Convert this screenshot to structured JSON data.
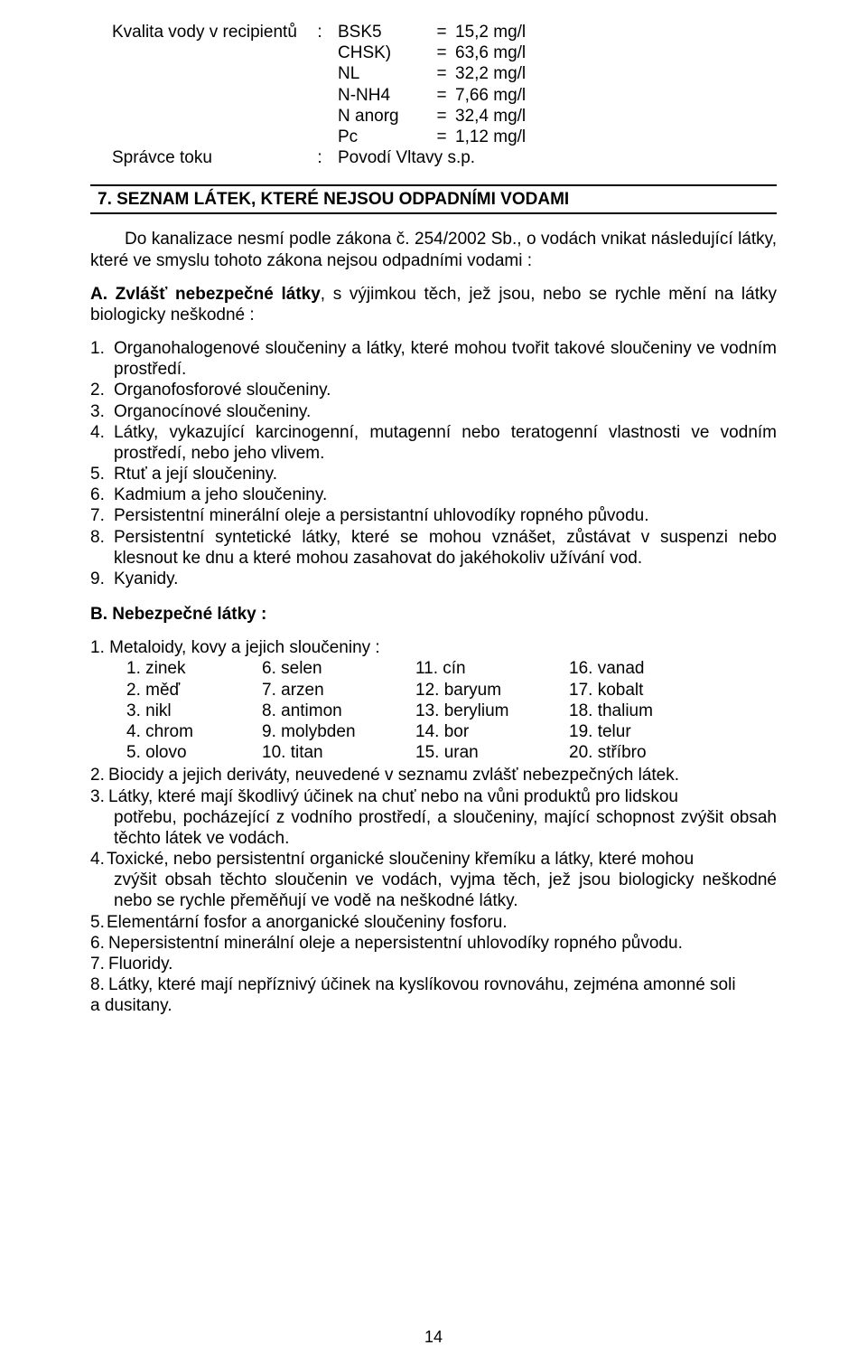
{
  "kv": {
    "label1": "Kvalita vody v recipientů",
    "colon": ":",
    "rows": [
      {
        "param": "BSK5",
        "eq": "=",
        "val": "15,2 mg/l"
      },
      {
        "param": "CHSK)",
        "eq": "=",
        "val": "63,6 mg/l"
      },
      {
        "param": "NL",
        "eq": "=",
        "val": "32,2 mg/l"
      },
      {
        "param": "N-NH4",
        "eq": "=",
        "val": "7,66 mg/l"
      },
      {
        "param": "N anorg",
        "eq": "=",
        "val": "32,4 mg/l"
      },
      {
        "param": "Pc",
        "eq": "=",
        "val": "1,12 mg/l"
      }
    ],
    "label2": "Správce toku",
    "val2": "Povodí Vltavy s.p."
  },
  "heading": "7. SEZNAM  LÁTEK,  KTERÉ  NEJSOU  ODPADNÍMI  VODAMI",
  "p1": "Do kanalizace nesmí podle zákona č. 254/2002 Sb., o vodách vnikat následující látky, které ve smyslu tohoto zákona nejsou odpadními vodami :",
  "p2a": "A. Zvlášť nebezpečné látky",
  "p2b": ", s výjimkou těch, jež jsou, nebo se rychle mění na látky biologicky neškodné :",
  "listA": [
    "Organohalogenové sloučeniny a látky, které mohou tvořit takové sloučeniny ve vodním prostředí.",
    "Organofosforové sloučeniny.",
    "Organocínové sloučeniny.",
    "Látky, vykazující karcinogenní, mutagenní nebo teratogenní vlastnosti ve vodním prostředí, nebo jeho vlivem.",
    "Rtuť a její sloučeniny.",
    "Kadmium a jeho sloučeniny.",
    "Persistentní minerální oleje a persistantní uhlovodíky ropného původu.",
    "Persistentní syntetické látky, které se mohou vznášet, zůstávat v suspenzi nebo klesnout ke dnu a které mohou zasahovat do jakéhokoliv užívání vod.",
    "Kyanidy."
  ],
  "subB": "B. Nebezpečné látky :",
  "b1": "1. Metaloidy, kovy a jejich sloučeniny :",
  "metals": [
    [
      "1. zinek",
      "6. selen",
      "11. cín",
      "16. vanad"
    ],
    [
      "2. měď",
      "7. arzen",
      "12. baryum",
      "17. kobalt"
    ],
    [
      "3. nikl",
      "8. antimon",
      "13. berylium",
      "18. thalium"
    ],
    [
      "4. chrom",
      "9. molybden",
      "14. bor",
      "19. telur"
    ],
    [
      "5. olovo",
      "10. titan",
      "15. uran",
      "20. stříbro"
    ]
  ],
  "notes": [
    {
      "n": "2.",
      "t": "Biocidy a jejich deriváty, neuvedené v seznamu zvlášť nebezpečných látek."
    },
    {
      "n": "3.",
      "t": "Látky, které mají škodlivý účinek na chuť nebo na vůni produktů pro lidskou"
    },
    {
      "cont": "potřebu, pocházející z vodního prostředí, a sloučeniny, mající schopnost zvýšit obsah těchto látek ve vodách."
    },
    {
      "n": "4.",
      "t": "Toxické, nebo persistentní organické sloučeniny křemíku a látky, které mohou",
      "tight": true
    },
    {
      "cont": "zvýšit obsah těchto sloučenin ve vodách, vyjma těch, jež jsou biologicky neškodné nebo se rychle přeměňují ve vodě na neškodné látky."
    },
    {
      "n": "5.",
      "t": "Elementární fosfor a anorganické sloučeniny fosforu.",
      "tight": true
    },
    {
      "n": "6.",
      "t": "Nepersistentní minerální oleje a nepersistentní uhlovodíky ropného původu."
    },
    {
      "n": "7.",
      "t": "Fluoridy."
    },
    {
      "n": "8.",
      "t": "Látky, které mají nepříznivý účinek na kyslíkovou rovnováhu, zejména amonné soli"
    },
    {
      "cont2": "a dusitany."
    }
  ],
  "pagenum": "14"
}
